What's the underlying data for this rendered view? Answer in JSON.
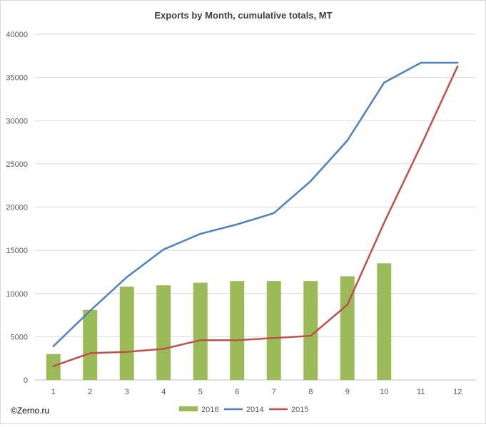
{
  "chart_data": {
    "type": "bar+line",
    "title": "Exports by Month, cumulative totals, MT",
    "xlabel": "",
    "ylabel": "",
    "categories": [
      "1",
      "2",
      "3",
      "4",
      "5",
      "6",
      "7",
      "8",
      "9",
      "10",
      "11",
      "12"
    ],
    "ylim": [
      0,
      40000
    ],
    "yticks": [
      "0",
      "5000",
      "10000",
      "15000",
      "20000",
      "25000",
      "30000",
      "35000",
      "40000"
    ],
    "grid": true,
    "legend_position": "bottom",
    "series": [
      {
        "name": "2016",
        "kind": "bar",
        "color": "#9bbb59",
        "values": [
          3000,
          8100,
          10800,
          10950,
          11250,
          11450,
          11450,
          11450,
          12000,
          13500,
          null,
          null
        ]
      },
      {
        "name": "2014",
        "kind": "line",
        "color": "#4f81bd",
        "values": [
          3900,
          8000,
          11900,
          15100,
          16900,
          18000,
          19300,
          23000,
          27700,
          34400,
          36700,
          36700
        ]
      },
      {
        "name": "2015",
        "kind": "line",
        "color": "#c0504d",
        "values": [
          1600,
          3100,
          3250,
          3600,
          4600,
          4600,
          4850,
          5100,
          8700,
          18200,
          27100,
          36300
        ]
      }
    ]
  },
  "credit": "©Zerno.ru"
}
